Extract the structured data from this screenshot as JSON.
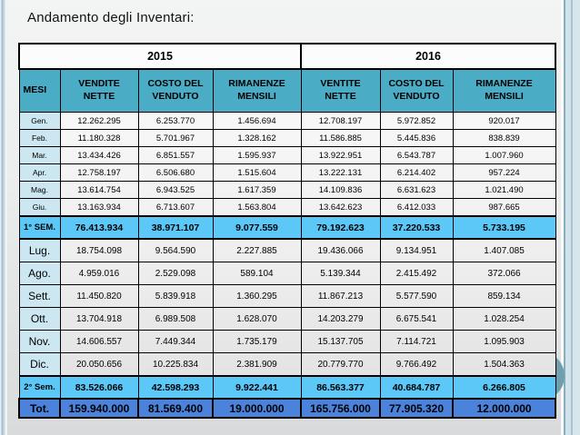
{
  "slide": {
    "title": "Andamento degli Inventari:"
  },
  "table": {
    "year_headers": [
      "2015",
      "2016"
    ],
    "column_headers": [
      "MESI",
      "VENDITE NETTE",
      "COSTO DEL VENDUTO",
      "RIMANENZE MENSILI",
      "VENTITE NETTE",
      "COSTO DEL VENDUTO",
      "RIMANENZE MENSILI"
    ],
    "rows": [
      {
        "label": "Gen.",
        "style": "small",
        "values": [
          "12.262.295",
          "6.253.770",
          "1.456.694",
          "12.708.197",
          "5.972.852",
          "920.017"
        ]
      },
      {
        "label": "Feb.",
        "style": "small",
        "values": [
          "11.180.328",
          "5.701.967",
          "1.328.162",
          "11.586.885",
          "5.445.836",
          "838.839"
        ]
      },
      {
        "label": "Mar.",
        "style": "small",
        "values": [
          "13.434.426",
          "6.851.557",
          "1.595.937",
          "13.922.951",
          "6.543.787",
          "1.007.960"
        ]
      },
      {
        "label": "Apr.",
        "style": "small",
        "values": [
          "12.758.197",
          "6.506.680",
          "1.515.604",
          "13.222.131",
          "6.214.402",
          "957.224"
        ]
      },
      {
        "label": "Mag.",
        "style": "small",
        "values": [
          "13.614.754",
          "6.943.525",
          "1.617.359",
          "14.109.836",
          "6.631.623",
          "1.021.490"
        ]
      },
      {
        "label": "Giu.",
        "style": "small",
        "values": [
          "13.163.934",
          "6.713.607",
          "1.563.804",
          "13.642.623",
          "6.412.033",
          "987.665"
        ]
      },
      {
        "label": "1° SEM.",
        "style": "sem",
        "values": [
          "76.413.934",
          "38.971.107",
          "9.077.559",
          "79.192.623",
          "37.220.533",
          "5.733.195"
        ]
      },
      {
        "label": "Lug.",
        "style": "large",
        "values": [
          "18.754.098",
          "9.564.590",
          "2.227.885",
          "19.436.066",
          "9.134.951",
          "1.407.085"
        ]
      },
      {
        "label": "Ago.",
        "style": "large",
        "values": [
          "4.959.016",
          "2.529.098",
          "589.104",
          "5.139.344",
          "2.415.492",
          "372.066"
        ]
      },
      {
        "label": "Sett.",
        "style": "large",
        "values": [
          "11.450.820",
          "5.839.918",
          "1.360.295",
          "11.867.213",
          "5.577.590",
          "859.134"
        ]
      },
      {
        "label": "Ott.",
        "style": "large",
        "values": [
          "13.704.918",
          "6.989.508",
          "1.628.070",
          "14.203.279",
          "6.675.541",
          "1.028.254"
        ]
      },
      {
        "label": "Nov.",
        "style": "large",
        "values": [
          "14.606.557",
          "7.449.344",
          "1.735.179",
          "15.137.705",
          "7.114.721",
          "1.095.903"
        ]
      },
      {
        "label": "Dic.",
        "style": "large",
        "values": [
          "20.050.656",
          "10.225.834",
          "2.381.909",
          "20.779.770",
          "9.766.492",
          "1.504.363"
        ]
      },
      {
        "label": "2° Sem.",
        "style": "sem",
        "values": [
          "83.526.066",
          "42.598.293",
          "9.922.441",
          "86.563.377",
          "40.684.787",
          "6.266.805"
        ]
      },
      {
        "label": "Tot.",
        "style": "tot",
        "values": [
          "159.940.000",
          "81.569.400",
          "19.000.000",
          "165.756.000",
          "77.905.320",
          "12.000.000"
        ]
      }
    ]
  },
  "colors": {
    "column_header_teal": "#4BACC6",
    "month_cell_blue": "#CDE7F2",
    "semester_row_cyan": "#5BC8F8",
    "total_row_blue": "#4A82DC",
    "side_band_blue": "#D2E2EA",
    "circle_teal": "#6F9EAE",
    "border": "#000000"
  }
}
